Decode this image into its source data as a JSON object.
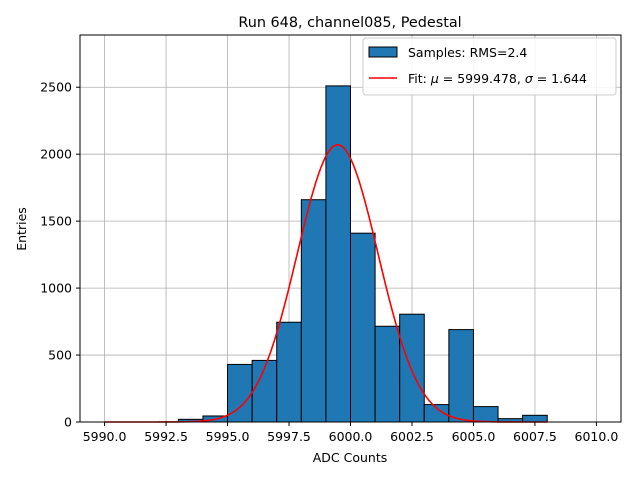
{
  "chart_data": {
    "type": "bar",
    "title": "Run 648, channel085, Pedestal",
    "xlabel": "ADC Counts",
    "ylabel": "Entries",
    "xlim": [
      5989.0,
      6011.0
    ],
    "ylim": [
      0,
      2890
    ],
    "xticks": [
      5990.0,
      5992.5,
      5995.0,
      5997.5,
      6000.0,
      6002.5,
      6005.0,
      6007.5,
      6010.0
    ],
    "xtick_labels": [
      "5990.0",
      "5992.5",
      "5995.0",
      "5997.5",
      "6000.0",
      "6002.5",
      "6005.0",
      "6007.5",
      "6010.0"
    ],
    "yticks": [
      0,
      500,
      1000,
      1500,
      2000,
      2500
    ],
    "ytick_labels": [
      "0",
      "500",
      "1000",
      "1500",
      "2000",
      "2500"
    ],
    "grid": true,
    "bin_width": 1.0,
    "bins": [
      {
        "x0": 5990,
        "value": 0
      },
      {
        "x0": 5991,
        "value": 0
      },
      {
        "x0": 5992,
        "value": 0
      },
      {
        "x0": 5993,
        "value": 20
      },
      {
        "x0": 5994,
        "value": 45
      },
      {
        "x0": 5995,
        "value": 430
      },
      {
        "x0": 5996,
        "value": 460
      },
      {
        "x0": 5997,
        "value": 745
      },
      {
        "x0": 5998,
        "value": 1660
      },
      {
        "x0": 5999,
        "value": 2510
      },
      {
        "x0": 6000,
        "value": 1410
      },
      {
        "x0": 6001,
        "value": 715
      },
      {
        "x0": 6002,
        "value": 805
      },
      {
        "x0": 6003,
        "value": 130
      },
      {
        "x0": 6004,
        "value": 690
      },
      {
        "x0": 6005,
        "value": 115
      },
      {
        "x0": 6006,
        "value": 25
      },
      {
        "x0": 6007,
        "value": 50
      }
    ],
    "fit": {
      "mu": 5999.478,
      "sigma": 1.644,
      "amplitude": 2070,
      "x_range": [
        5990,
        6008
      ]
    },
    "legend": {
      "position": "top-right",
      "entries": [
        {
          "kind": "bar",
          "label": "Samples: RMS=2.4",
          "color": "#1f77b4"
        },
        {
          "kind": "line",
          "label_prefix": "Fit: ",
          "label_mu": "μ",
          "label_mid": " = 5999.478, ",
          "label_sigma": "σ",
          "label_suffix": " = 1.644",
          "color": "#ff0000"
        }
      ]
    },
    "colors": {
      "bar": "#1f77b4",
      "bar_edge": "#000000",
      "fit": "#ff0000",
      "grid": "#b0b0b0"
    }
  }
}
